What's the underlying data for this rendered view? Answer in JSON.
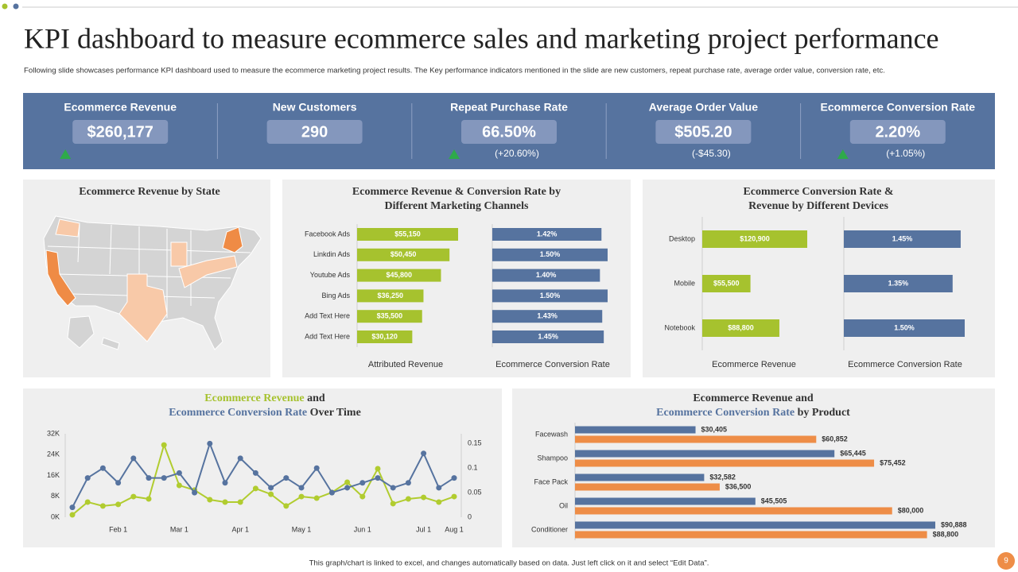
{
  "header": {
    "title": "KPI dashboard to measure ecommerce sales and marketing project performance",
    "subtitle": "Following slide showcases performance KPI dashboard used to measure the ecommerce marketing project results. The Key performance indicators mentioned in the slide are new customers, repeat purchase rate, average order value, conversion rate, etc."
  },
  "kpis": [
    {
      "label": "Ecommerce Revenue",
      "value": "$260,177",
      "trend": "up"
    },
    {
      "label": "New Customers",
      "value": "290"
    },
    {
      "label": "Repeat Purchase Rate",
      "value": "66.50%",
      "change": "(+20.60%)",
      "trend": "up"
    },
    {
      "label": "Average Order Value",
      "value": "$505.20",
      "change": "(-$45.30)"
    },
    {
      "label": "Ecommerce Conversion Rate",
      "value": "2.20%",
      "change": "(+1.05%)",
      "trend": "up"
    }
  ],
  "map": {
    "title": "Ecommerce Revenue by State"
  },
  "chart_data": [
    {
      "type": "bar",
      "orientation": "horizontal",
      "title": [
        "Ecommerce Revenue & Conversion Rate by",
        "Different Marketing Channels"
      ],
      "categories": [
        "Facebook Ads",
        "Linkdin Ads",
        "Youtube Ads",
        "Bing Ads",
        "Add Text Here",
        "Add Text Here"
      ],
      "series": [
        {
          "name": "Attributed Revenue",
          "color": "#a6c22e",
          "values": [
            55150,
            50450,
            45800,
            36250,
            35500,
            30120
          ],
          "value_labels": [
            "$55,150",
            "$50,450",
            "$45,800",
            "$36,250",
            "$35,500",
            "$30,120"
          ]
        },
        {
          "name": "Ecommerce Conversion Rate",
          "color": "#56739f",
          "values": [
            1.42,
            1.5,
            1.4,
            1.5,
            1.43,
            1.45
          ],
          "value_labels": [
            "1.42%",
            "1.50%",
            "1.40%",
            "1.50%",
            "1.43%",
            "1.45%"
          ]
        }
      ]
    },
    {
      "type": "bar",
      "orientation": "horizontal",
      "title": [
        "Ecommerce Conversion Rate &",
        "Revenue by Different Devices"
      ],
      "categories": [
        "Desktop",
        "Mobile",
        "Notebook"
      ],
      "series": [
        {
          "name": "Ecommerce Revenue",
          "color": "#a6c22e",
          "values": [
            120900,
            55500,
            88800
          ],
          "value_labels": [
            "$120,900",
            "$55,500",
            "$88,800"
          ]
        },
        {
          "name": "Ecommerce Conversion Rate",
          "color": "#56739f",
          "values": [
            1.45,
            1.35,
            1.5
          ],
          "value_labels": [
            "1.45%",
            "1.35%",
            "1.50%"
          ]
        }
      ]
    },
    {
      "type": "line",
      "title": [
        [
          {
            "text": "Ecommerce Revenue",
            "color": "#a6c22e"
          },
          {
            "text": " and"
          }
        ],
        [
          {
            "text": "Ecommerce Conversion Rate",
            "color": "#56739f"
          },
          {
            "text": " Over Time"
          }
        ]
      ],
      "categories": [
        null,
        null,
        null,
        "Feb 1",
        null,
        null,
        null,
        "Mar 1",
        null,
        null,
        null,
        "Apr 1",
        null,
        null,
        null,
        "May 1",
        null,
        null,
        null,
        "Jun 1",
        null,
        null,
        null,
        "Jul 1",
        null,
        "Aug 1"
      ],
      "series": [
        {
          "color": "#b1cc2f",
          "values": [
            900,
            5800,
            4300,
            4900,
            7900,
            7000,
            27700,
            12200,
            10400,
            6700,
            5800,
            5800,
            11000,
            8800,
            4300,
            7900,
            7300,
            9500,
            13400,
            7900,
            18600,
            5200,
            7000,
            7600,
            5800,
            7900
          ]
        },
        {
          "color": "#56739f",
          "axis": "y2",
          "values": [
            0.02,
            0.08,
            0.1,
            0.07,
            0.12,
            0.08,
            0.08,
            0.09,
            0.05,
            0.15,
            0.07,
            0.12,
            0.09,
            0.06,
            0.08,
            0.06,
            0.1,
            0.05,
            0.06,
            0.07,
            0.08,
            0.06,
            0.07,
            0.13,
            0.06,
            0.08
          ]
        }
      ],
      "ylim": [
        0,
        32000
      ],
      "yticks": [
        {
          "value": 0,
          "label": "0K"
        },
        {
          "value": 8000,
          "label": "8K"
        },
        {
          "value": 16000,
          "label": "16K"
        },
        {
          "value": 24000,
          "label": "24K"
        },
        {
          "value": 32000,
          "label": "32K"
        }
      ],
      "y2lim": [
        0,
        0.17
      ],
      "y2ticks": [
        0,
        0.05,
        0.1,
        0.15
      ]
    },
    {
      "type": "bar",
      "orientation": "horizontal",
      "title": [
        [
          {
            "text": "Ecommerce Revenue and"
          }
        ],
        [
          {
            "text": "Ecommerce Conversion Rate",
            "color": "#56739f"
          },
          {
            "text": " by Product"
          }
        ]
      ],
      "categories": [
        "Facewash",
        "Shampoo",
        "Face Pack",
        "Oil",
        "Conditioner"
      ],
      "series": [
        {
          "color": "#56739f",
          "values": [
            30405,
            65445,
            32582,
            45505,
            90888
          ],
          "value_labels": [
            "$30,405",
            "$65,445",
            "$32,582",
            "$45,505",
            "$90,888"
          ]
        },
        {
          "color": "#ee8d47",
          "values": [
            60852,
            75452,
            36500,
            80000,
            88800
          ],
          "value_labels": [
            "$60,852",
            "$75,452",
            "$36,500",
            "$80,000",
            "$88,800"
          ]
        }
      ]
    }
  ],
  "footer": "This graph/chart is linked to excel, and changes automatically based on data. Just left click on it and select “Edit Data”.",
  "page_number": "9"
}
